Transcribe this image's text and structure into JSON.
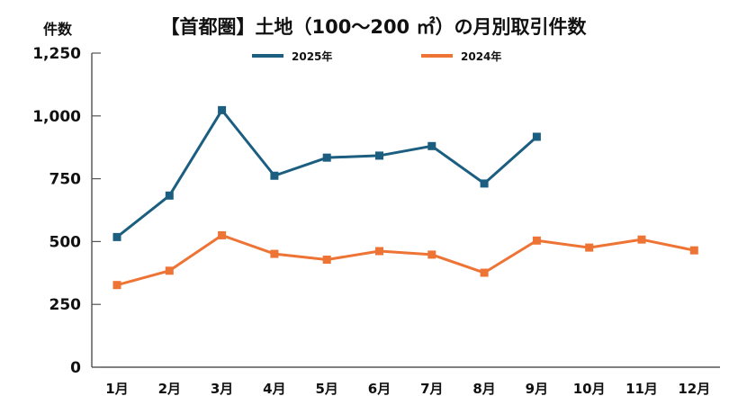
{
  "chart_data": {
    "type": "line",
    "title": "【首都圏】土地（100～200 ㎡）の月別取引件数",
    "ylabel": "件数",
    "xlabel": "",
    "categories": [
      "1月",
      "2月",
      "3月",
      "4月",
      "5月",
      "6月",
      "7月",
      "8月",
      "9月",
      "10月",
      "11月",
      "12月"
    ],
    "ylim": [
      0,
      1250
    ],
    "yticks": [
      0,
      250,
      500,
      750,
      1000,
      1250
    ],
    "ytick_labels": [
      "0",
      "250",
      "500",
      "750",
      "1,000",
      "1,250"
    ],
    "grid": false,
    "legend_position": "top",
    "series": [
      {
        "name": "2025年",
        "color": "#1b5e80",
        "marker": "square",
        "values": [
          518,
          683,
          1023,
          762,
          834,
          842,
          880,
          731,
          917,
          null,
          null,
          null
        ]
      },
      {
        "name": "2024年",
        "color": "#ee7435",
        "marker": "square",
        "values": [
          327,
          384,
          525,
          451,
          428,
          462,
          448,
          376,
          504,
          476,
          508,
          465
        ]
      }
    ]
  }
}
